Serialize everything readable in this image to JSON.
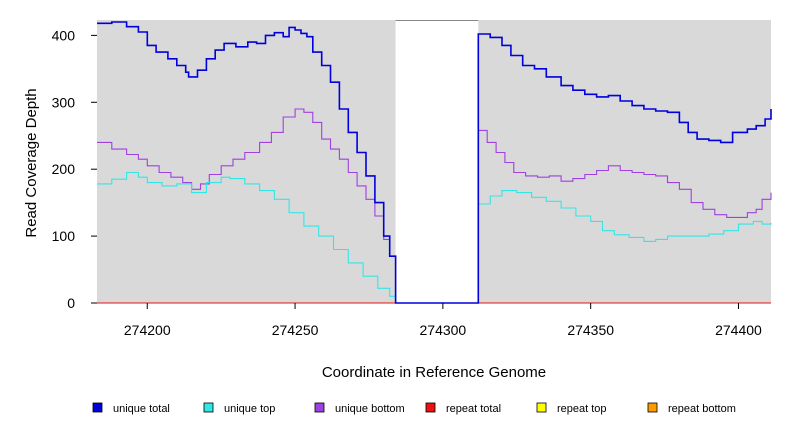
{
  "chart_data": {
    "type": "line",
    "xlabel": "Coordinate in Reference Genome",
    "ylabel": "Read Coverage Depth",
    "xlim": [
      274183,
      274411
    ],
    "ylim": [
      0,
      423
    ],
    "x_ticks": [
      274200,
      274250,
      274300,
      274350,
      274400
    ],
    "x_tick_labels": [
      "274200",
      "274250",
      "274300",
      "274350",
      "274400"
    ],
    "y_ticks": [
      0,
      100,
      200,
      300,
      400
    ],
    "y_tick_labels": [
      "0",
      "100",
      "200",
      "300",
      "400"
    ],
    "excluded_region": [
      274284,
      274312
    ],
    "step_plot": true,
    "series": [
      {
        "name": "unique total",
        "color": "#0000dd",
        "points": [
          [
            274183,
            418
          ],
          [
            274188,
            420
          ],
          [
            274193,
            413
          ],
          [
            274197,
            405
          ],
          [
            274200,
            385
          ],
          [
            274203,
            375
          ],
          [
            274207,
            365
          ],
          [
            274210,
            355
          ],
          [
            274213,
            345
          ],
          [
            274214,
            338
          ],
          [
            274217,
            348
          ],
          [
            274220,
            365
          ],
          [
            274223,
            378
          ],
          [
            274226,
            388
          ],
          [
            274230,
            383
          ],
          [
            274234,
            390
          ],
          [
            274237,
            388
          ],
          [
            274240,
            400
          ],
          [
            274243,
            404
          ],
          [
            274246,
            398
          ],
          [
            274248,
            412
          ],
          [
            274250,
            408
          ],
          [
            274252,
            403
          ],
          [
            274254,
            398
          ],
          [
            274256,
            375
          ],
          [
            274259,
            355
          ],
          [
            274262,
            330
          ],
          [
            274265,
            290
          ],
          [
            274268,
            255
          ],
          [
            274271,
            225
          ],
          [
            274274,
            190
          ],
          [
            274277,
            150
          ],
          [
            274280,
            100
          ],
          [
            274282,
            70
          ],
          [
            274284,
            50
          ],
          [
            274284,
            0
          ],
          [
            274312,
            0
          ],
          [
            274312,
            402
          ],
          [
            274316,
            397
          ],
          [
            274320,
            385
          ],
          [
            274323,
            370
          ],
          [
            274327,
            355
          ],
          [
            274331,
            350
          ],
          [
            274335,
            338
          ],
          [
            274340,
            325
          ],
          [
            274344,
            318
          ],
          [
            274348,
            312
          ],
          [
            274352,
            308
          ],
          [
            274356,
            310
          ],
          [
            274360,
            302
          ],
          [
            274364,
            295
          ],
          [
            274368,
            290
          ],
          [
            274372,
            287
          ],
          [
            274376,
            285
          ],
          [
            274380,
            270
          ],
          [
            274383,
            255
          ],
          [
            274386,
            245
          ],
          [
            274390,
            243
          ],
          [
            274394,
            240
          ],
          [
            274398,
            255
          ],
          [
            274403,
            260
          ],
          [
            274406,
            265
          ],
          [
            274409,
            275
          ],
          [
            274411,
            290
          ]
        ]
      },
      {
        "name": "unique top",
        "color": "#33e6e6",
        "points": [
          [
            274183,
            178
          ],
          [
            274188,
            185
          ],
          [
            274193,
            195
          ],
          [
            274197,
            188
          ],
          [
            274200,
            180
          ],
          [
            274205,
            175
          ],
          [
            274210,
            178
          ],
          [
            274215,
            165
          ],
          [
            274220,
            180
          ],
          [
            274225,
            188
          ],
          [
            274228,
            186
          ],
          [
            274233,
            178
          ],
          [
            274238,
            168
          ],
          [
            274243,
            155
          ],
          [
            274248,
            135
          ],
          [
            274253,
            115
          ],
          [
            274258,
            100
          ],
          [
            274263,
            80
          ],
          [
            274268,
            60
          ],
          [
            274273,
            40
          ],
          [
            274278,
            22
          ],
          [
            274282,
            10
          ],
          [
            274284,
            5
          ],
          [
            274284,
            0
          ],
          [
            274312,
            0
          ],
          [
            274312,
            148
          ],
          [
            274316,
            160
          ],
          [
            274320,
            168
          ],
          [
            274325,
            165
          ],
          [
            274330,
            158
          ],
          [
            274335,
            152
          ],
          [
            274340,
            142
          ],
          [
            274345,
            130
          ],
          [
            274350,
            122
          ],
          [
            274354,
            108
          ],
          [
            274358,
            102
          ],
          [
            274363,
            98
          ],
          [
            274368,
            92
          ],
          [
            274372,
            95
          ],
          [
            274376,
            100
          ],
          [
            274380,
            100
          ],
          [
            274385,
            100
          ],
          [
            274390,
            103
          ],
          [
            274395,
            108
          ],
          [
            274400,
            118
          ],
          [
            274405,
            122
          ],
          [
            274408,
            118
          ],
          [
            274411,
            120
          ]
        ]
      },
      {
        "name": "unique bottom",
        "color": "#a040e0",
        "points": [
          [
            274183,
            240
          ],
          [
            274188,
            230
          ],
          [
            274193,
            222
          ],
          [
            274197,
            215
          ],
          [
            274200,
            205
          ],
          [
            274204,
            195
          ],
          [
            274208,
            188
          ],
          [
            274212,
            180
          ],
          [
            274215,
            170
          ],
          [
            274218,
            178
          ],
          [
            274221,
            192
          ],
          [
            274225,
            205
          ],
          [
            274229,
            215
          ],
          [
            274233,
            225
          ],
          [
            274238,
            240
          ],
          [
            274242,
            255
          ],
          [
            274246,
            278
          ],
          [
            274250,
            290
          ],
          [
            274253,
            285
          ],
          [
            274256,
            270
          ],
          [
            274259,
            245
          ],
          [
            274262,
            230
          ],
          [
            274265,
            215
          ],
          [
            274268,
            195
          ],
          [
            274271,
            175
          ],
          [
            274274,
            155
          ],
          [
            274277,
            130
          ],
          [
            274280,
            95
          ],
          [
            274282,
            70
          ],
          [
            274284,
            45
          ],
          [
            274284,
            0
          ],
          [
            274312,
            0
          ],
          [
            274312,
            258
          ],
          [
            274315,
            240
          ],
          [
            274318,
            225
          ],
          [
            274321,
            210
          ],
          [
            274324,
            195
          ],
          [
            274328,
            190
          ],
          [
            274332,
            188
          ],
          [
            274336,
            190
          ],
          [
            274340,
            182
          ],
          [
            274344,
            186
          ],
          [
            274348,
            192
          ],
          [
            274352,
            198
          ],
          [
            274356,
            205
          ],
          [
            274360,
            198
          ],
          [
            274364,
            195
          ],
          [
            274368,
            192
          ],
          [
            274372,
            190
          ],
          [
            274376,
            180
          ],
          [
            274380,
            170
          ],
          [
            274384,
            150
          ],
          [
            274388,
            140
          ],
          [
            274392,
            132
          ],
          [
            274396,
            128
          ],
          [
            274400,
            128
          ],
          [
            274403,
            135
          ],
          [
            274406,
            140
          ],
          [
            274408,
            155
          ],
          [
            274411,
            165
          ]
        ]
      },
      {
        "name": "repeat total",
        "color": "#ee1111",
        "points": [
          [
            274183,
            0
          ],
          [
            274411,
            0
          ]
        ]
      },
      {
        "name": "repeat top",
        "color": "#ffff00",
        "points": [
          [
            274183,
            0
          ],
          [
            274411,
            0
          ]
        ]
      },
      {
        "name": "repeat bottom",
        "color": "#ff9900",
        "points": [
          [
            274183,
            0
          ],
          [
            274411,
            0
          ]
        ]
      }
    ]
  }
}
